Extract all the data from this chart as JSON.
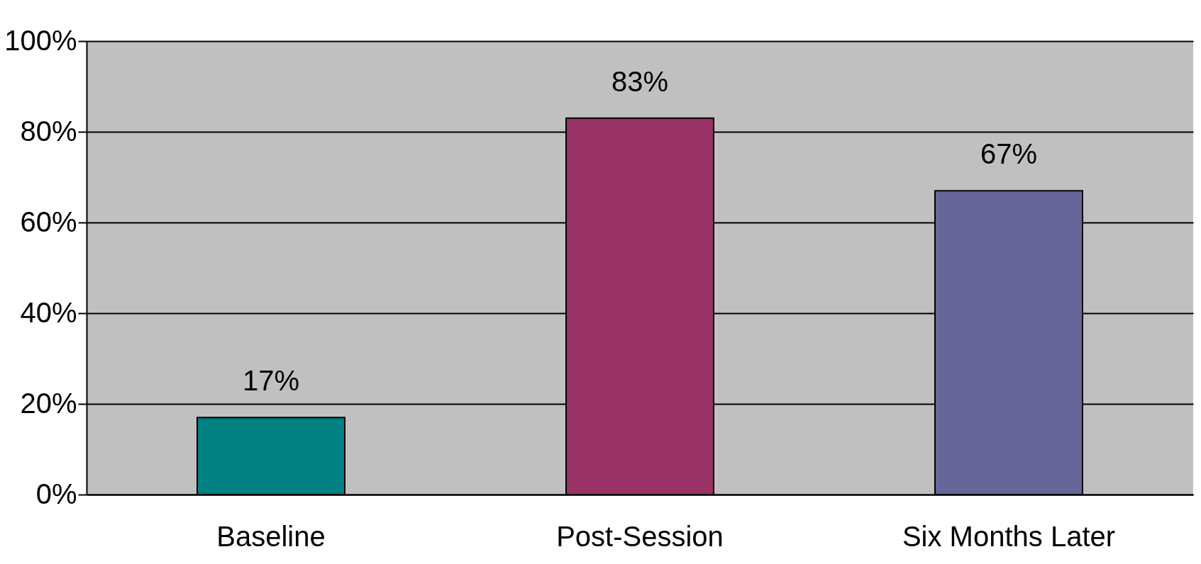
{
  "chart_data": {
    "type": "bar",
    "categories": [
      "Baseline",
      "Post-Session",
      "Six Months Later"
    ],
    "values": [
      17,
      83,
      67
    ],
    "colors": [
      "#008080",
      "#993366",
      "#666699"
    ],
    "value_labels": [
      "17%",
      "83%",
      "67%"
    ],
    "ylim": [
      0,
      100
    ],
    "yticks": [
      {
        "value": 0,
        "label": "0%"
      },
      {
        "value": 20,
        "label": "20%"
      },
      {
        "value": 40,
        "label": "40%"
      },
      {
        "value": 60,
        "label": "60%"
      },
      {
        "value": 80,
        "label": "80%"
      },
      {
        "value": 100,
        "label": "100%"
      }
    ],
    "grid": "y"
  }
}
